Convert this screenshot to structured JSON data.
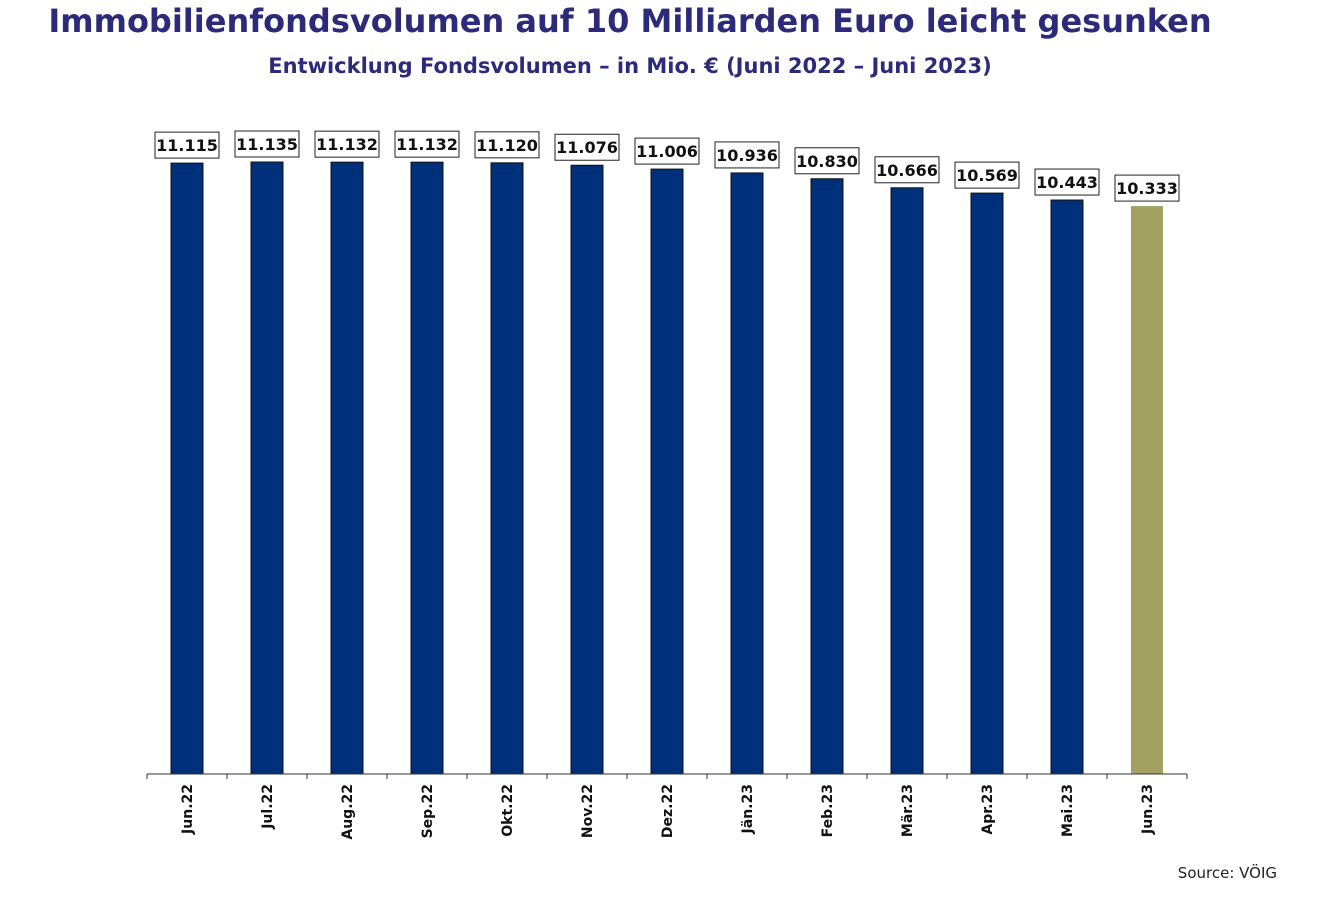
{
  "title": "Immobilienfondsvolumen auf 10 Milliarden Euro leicht gesunken",
  "subtitle": "Entwicklung Fondsvolumen – in Mio. € (Juni 2022 – Juni 2023)",
  "source": "Source: VÖIG",
  "colors": {
    "title": "#2e2a7a",
    "bar": "#00307a",
    "highlight_bar": "#a3a162"
  },
  "chart_data": {
    "type": "bar",
    "title": "Immobilienfondsvolumen auf 10 Milliarden Euro leicht gesunken",
    "subtitle": "Entwicklung Fondsvolumen – in Mio. € (Juni 2022 – Juni 2023)",
    "xlabel": "",
    "ylabel": "",
    "categories": [
      "Jun.22",
      "Jul.22",
      "Aug.22",
      "Sep.22",
      "Okt.22",
      "Nov.22",
      "Dez.22",
      "Jän.23",
      "Feb.23",
      "Mär.23",
      "Apr.23",
      "Mai.23",
      "Jun.23"
    ],
    "values": [
      11115,
      11135,
      11132,
      11132,
      11120,
      11076,
      11006,
      10936,
      10830,
      10666,
      10569,
      10443,
      10333
    ],
    "value_labels": [
      "11.115",
      "11.135",
      "11.132",
      "11.132",
      "11.120",
      "11.076",
      "11.006",
      "10.936",
      "10.830",
      "10.666",
      "10.569",
      "10.443",
      "10.333"
    ],
    "highlight_index": 12,
    "ylim": [
      0,
      11135
    ],
    "grid": false,
    "legend": "none"
  }
}
